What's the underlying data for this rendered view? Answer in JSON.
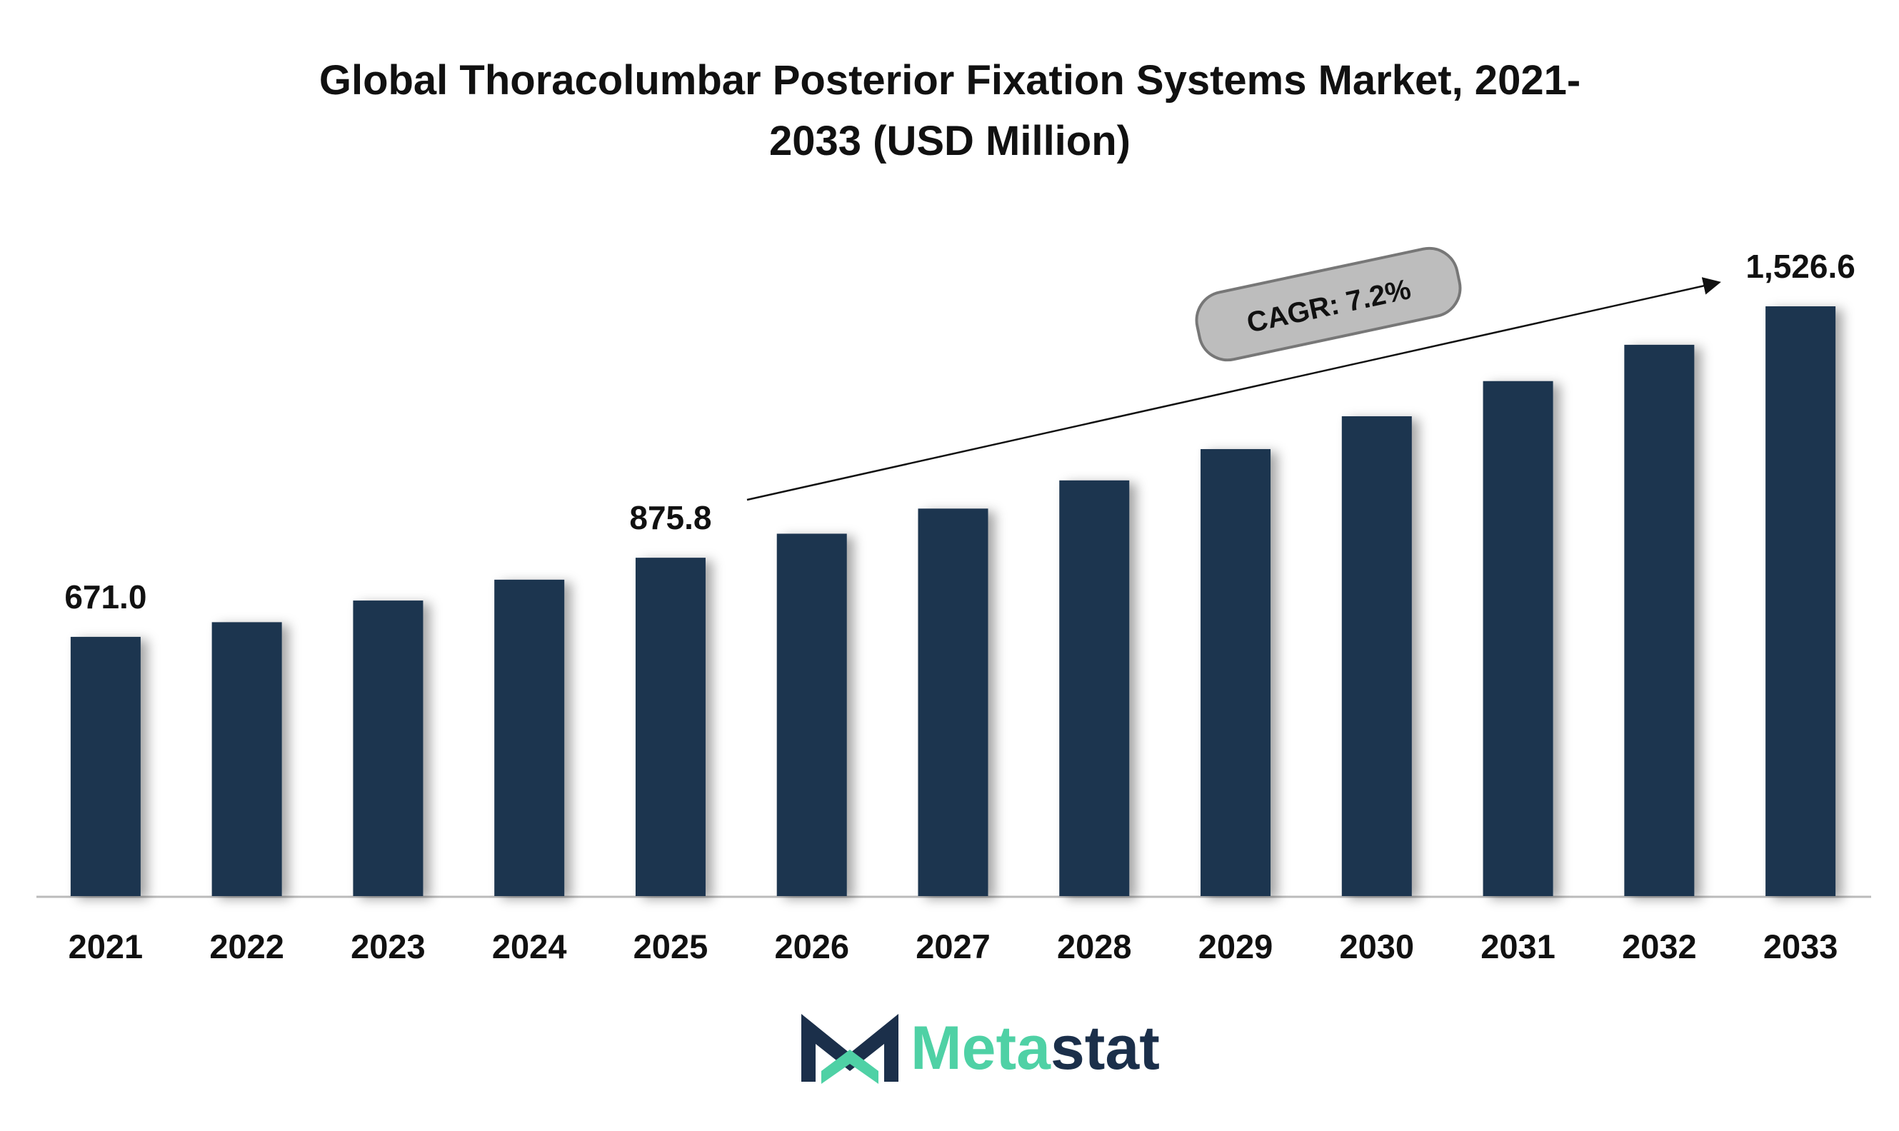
{
  "chart_data": {
    "type": "bar",
    "title": [
      "Global Thoracolumbar Posterior Fixation Systems Market, 2021-",
      "2033 (USD Million)"
    ],
    "categories": [
      "2021",
      "2022",
      "2023",
      "2024",
      "2025",
      "2026",
      "2027",
      "2028",
      "2029",
      "2030",
      "2031",
      "2032",
      "2033"
    ],
    "values": [
      671.0,
      709,
      765,
      819,
      875.8,
      938,
      1003,
      1076,
      1157,
      1242,
      1333,
      1427,
      1526.6
    ],
    "value_labels": [
      "671.0",
      null,
      null,
      null,
      "875.8",
      null,
      null,
      null,
      null,
      null,
      null,
      null,
      "1,526.6"
    ],
    "color": "#1c3450",
    "annotation": "CAGR: 7.2%",
    "brand": [
      "Meta",
      "stat"
    ]
  }
}
